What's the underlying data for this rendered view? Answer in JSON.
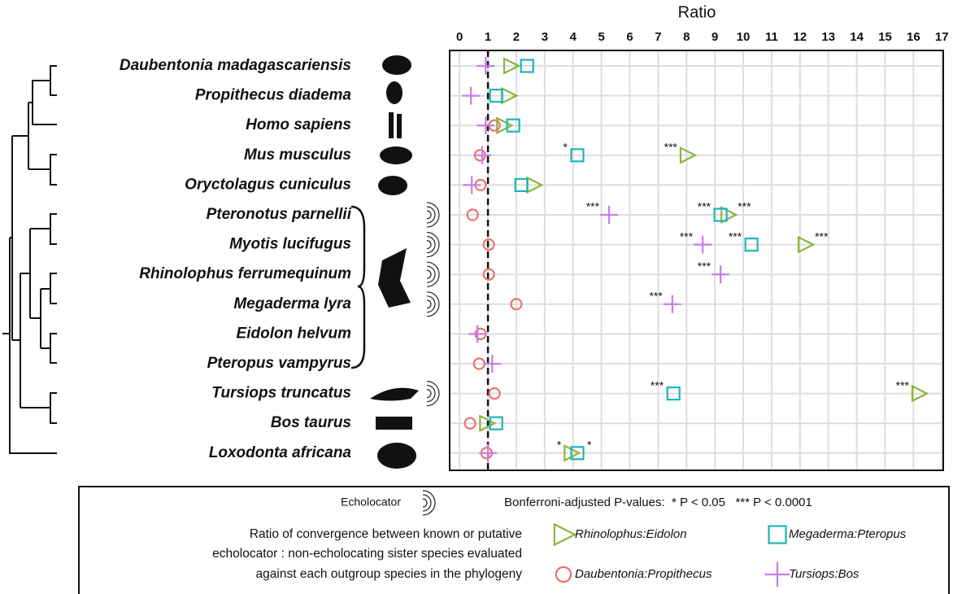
{
  "chart_data": {
    "type": "dot",
    "title": "Ratio",
    "categories": [
      "Daubentonia madagascariensis",
      "Propithecus diadema",
      "Homo sapiens",
      "Mus musculus",
      "Oryctolagus cuniculus",
      "Pteronotus parnellii",
      "Myotis lucifugus",
      "Rhinolophus ferrumequinum",
      "Megaderma lyra",
      "Eidolon helvum",
      "Pteropus vampyrus",
      "Tursiops truncatus",
      "Bos taurus",
      "Loxodonta africana"
    ],
    "xlim": [
      -0.35,
      17.05
    ],
    "xticks": [
      0,
      1,
      2,
      3,
      4,
      5,
      6,
      7,
      8,
      9,
      10,
      11,
      12,
      13,
      14,
      15,
      16,
      17
    ],
    "reference_line": 1,
    "grid": true,
    "series": [
      {
        "name": "Rhinolophus:Eidolon",
        "color": "#8db53c",
        "marker": "triangle",
        "values": [
          1.8,
          1.72,
          1.55,
          8.02,
          2.61,
          9.46,
          12.18,
          null,
          null,
          null,
          null,
          16.19,
          0.95,
          3.93
        ],
        "labels": [
          null,
          null,
          null,
          "***",
          null,
          "***",
          "***",
          null,
          null,
          null,
          null,
          "***",
          null,
          "*"
        ]
      },
      {
        "name": "Megaderma:Pteropus",
        "color": "#1fb5b8",
        "marker": "square",
        "values": [
          2.38,
          1.29,
          1.89,
          4.15,
          2.18,
          9.2,
          10.29,
          null,
          null,
          null,
          null,
          7.54,
          1.29,
          4.15
        ],
        "labels": [
          null,
          null,
          null,
          "*",
          null,
          "***",
          "***",
          null,
          null,
          null,
          null,
          "***",
          null,
          "*"
        ]
      },
      {
        "name": "Daubentonia:Propithecus",
        "color": "#e8736b",
        "marker": "circle",
        "values": [
          null,
          null,
          1.23,
          0.72,
          0.74,
          0.46,
          1.03,
          1.03,
          2.0,
          0.74,
          0.69,
          1.23,
          0.37,
          0.95
        ]
      },
      {
        "name": "Tursiops:Bos",
        "color": "#c77ce8",
        "marker": "plus",
        "values": [
          0.92,
          0.4,
          0.92,
          0.8,
          0.43,
          5.27,
          8.57,
          9.2,
          7.5,
          0.63,
          1.15,
          null,
          null,
          1.0
        ],
        "labels": [
          null,
          null,
          null,
          null,
          null,
          "***",
          "***",
          "***",
          "***",
          null,
          null,
          null,
          null,
          null
        ]
      }
    ],
    "legend": {
      "echolocator": "Echolocator",
      "pvalues": "Bonferroni-adjusted P-values:  * P < 0.05   *** P < 0.0001",
      "description": [
        "Ratio of convergence between known or putative",
        "echolocator : non-echolocating sister species evaluated",
        "against each outgroup species in the phylogeny"
      ]
    }
  }
}
